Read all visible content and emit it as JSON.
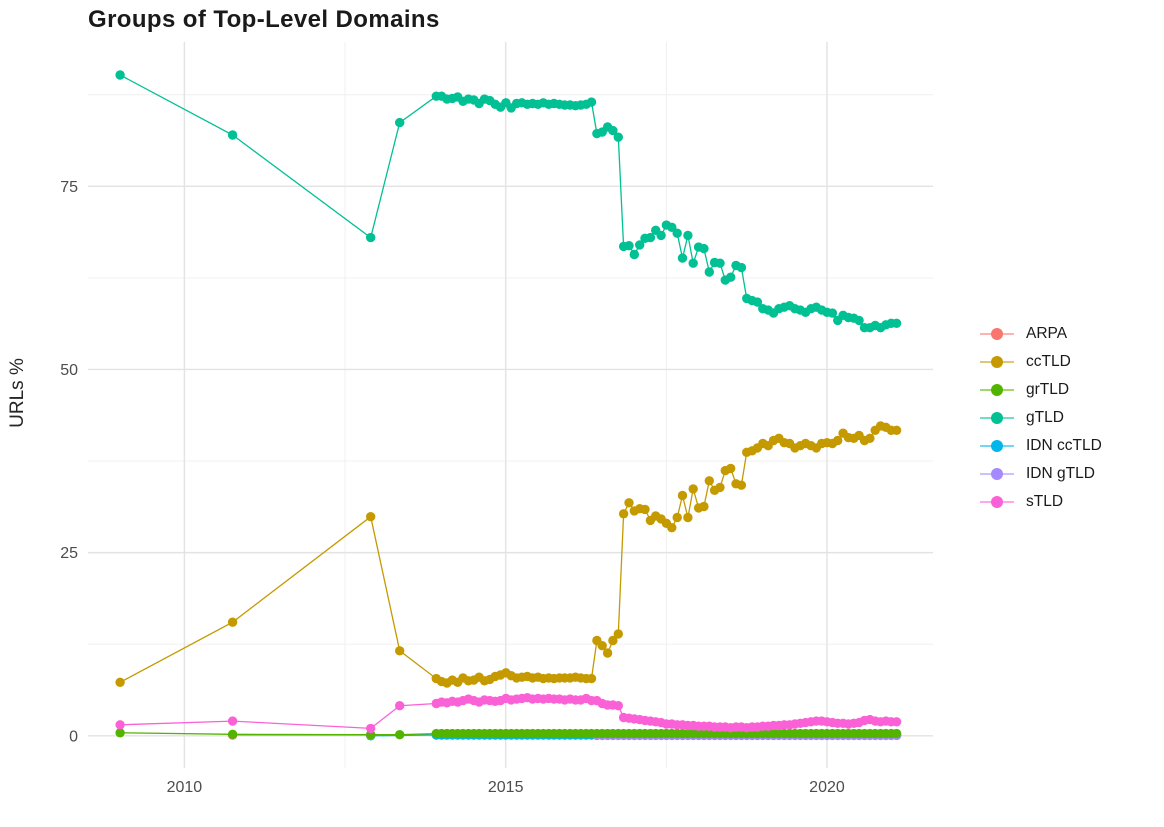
{
  "page": {
    "title": "Groups of Top-Level Domains"
  },
  "chart_data": {
    "type": "line",
    "title": "Groups of Top-Level Domains",
    "xlabel": "",
    "ylabel": "URLs %",
    "x_ticks": [
      2010,
      2015,
      2020
    ],
    "x_minor_gridlines": [
      2012.5,
      2017.5
    ],
    "y_ticks": [
      0,
      25,
      50,
      75
    ],
    "y_minor_gridlines": [
      12.5,
      37.5,
      62.5,
      87.5
    ],
    "xlim": [
      2008.5,
      2021.65
    ],
    "ylim": [
      -4.4,
      94.7
    ],
    "grid": true,
    "legend_position": "right",
    "legend": [
      "ARPA",
      "ccTLD",
      "grTLD",
      "gTLD",
      "IDN ccTLD",
      "IDN gTLD",
      "sTLD"
    ],
    "draw_order": [
      "IDN ccTLD",
      "IDN gTLD",
      "ARPA",
      "grTLD",
      "ccTLD",
      "gTLD",
      "sTLD"
    ],
    "series": [
      {
        "name": "ARPA",
        "color": "#F8766D",
        "early": [
          [
            2010.75,
            0.1
          ],
          [
            2012.9,
            0.1
          ]
        ],
        "monthly_start": null,
        "monthly_step": null,
        "monthly": []
      },
      {
        "name": "ccTLD",
        "color": "#C49A00",
        "early": [
          [
            2009.0,
            7.3
          ],
          [
            2010.75,
            15.5
          ],
          [
            2012.9,
            29.9
          ],
          [
            2013.35,
            11.6
          ]
        ],
        "monthly_start": 2013.92,
        "monthly_step": 0.0833,
        "monthly": [
          7.8,
          7.4,
          7.2,
          7.6,
          7.3,
          7.9,
          7.5,
          7.6,
          8.0,
          7.5,
          7.7,
          8.1,
          8.3,
          8.6,
          8.2,
          7.9,
          8.0,
          8.1,
          7.9,
          8.0,
          7.8,
          7.9,
          7.8,
          7.9,
          7.9,
          7.9,
          8.0,
          7.9,
          7.8,
          7.8,
          13.0,
          12.3,
          11.3,
          13.0,
          13.9,
          30.3,
          31.8,
          30.7,
          31.0,
          30.9,
          29.4,
          30.0,
          29.6,
          29.0,
          28.4,
          29.8,
          32.8,
          29.8,
          33.7,
          31.1,
          31.3,
          34.8,
          33.5,
          33.9,
          36.2,
          36.5,
          34.4,
          34.2,
          38.7,
          38.9,
          39.3,
          39.9,
          39.6,
          40.3,
          40.6,
          40.0,
          39.9,
          39.3,
          39.6,
          39.9,
          39.6,
          39.3,
          39.9,
          40.0,
          39.9,
          40.3,
          41.3,
          40.7,
          40.6,
          41.0,
          40.3,
          40.6,
          41.7,
          42.3,
          42.1,
          41.7,
          41.7
        ]
      },
      {
        "name": "grTLD",
        "color": "#53B400",
        "early": [
          [
            2009.0,
            0.4
          ],
          [
            2010.75,
            0.2
          ],
          [
            2012.9,
            0.15
          ],
          [
            2013.35,
            0.15
          ]
        ],
        "monthly_start": 2013.92,
        "monthly_step": 0.0833,
        "monthly": [
          0.3,
          0.3,
          0.3,
          0.3,
          0.3,
          0.3,
          0.3,
          0.3,
          0.3,
          0.3,
          0.3,
          0.3,
          0.3,
          0.3,
          0.3,
          0.3,
          0.3,
          0.3,
          0.3,
          0.3,
          0.3,
          0.3,
          0.3,
          0.3,
          0.3,
          0.3,
          0.3,
          0.3,
          0.3,
          0.3,
          0.3,
          0.3,
          0.3,
          0.3,
          0.3,
          0.3,
          0.3,
          0.3,
          0.3,
          0.3,
          0.3,
          0.3,
          0.3,
          0.3,
          0.3,
          0.3,
          0.3,
          0.3,
          0.3,
          0.3,
          0.3,
          0.3,
          0.3,
          0.3,
          0.3,
          0.3,
          0.3,
          0.3,
          0.3,
          0.3,
          0.3,
          0.3,
          0.3,
          0.3,
          0.3,
          0.3,
          0.3,
          0.3,
          0.3,
          0.3,
          0.3,
          0.3,
          0.3,
          0.3,
          0.3,
          0.3,
          0.3,
          0.3,
          0.3,
          0.3,
          0.3,
          0.3,
          0.3,
          0.3,
          0.3,
          0.3,
          0.3
        ]
      },
      {
        "name": "gTLD",
        "color": "#00C094",
        "early": [
          [
            2009.0,
            90.2
          ],
          [
            2010.75,
            82.0
          ],
          [
            2012.9,
            68.0
          ],
          [
            2013.35,
            83.7
          ]
        ],
        "monthly_start": 2013.92,
        "monthly_step": 0.0833,
        "monthly": [
          87.3,
          87.3,
          86.9,
          87.0,
          87.2,
          86.6,
          86.9,
          86.8,
          86.3,
          86.9,
          86.7,
          86.2,
          85.8,
          86.4,
          85.7,
          86.3,
          86.4,
          86.2,
          86.3,
          86.2,
          86.4,
          86.2,
          86.3,
          86.2,
          86.1,
          86.1,
          86.0,
          86.1,
          86.2,
          86.5,
          82.2,
          82.4,
          83.1,
          82.6,
          81.7,
          66.8,
          66.9,
          65.7,
          67.0,
          67.9,
          68.0,
          69.0,
          68.3,
          69.7,
          69.4,
          68.6,
          65.2,
          68.3,
          64.5,
          66.7,
          66.5,
          63.3,
          64.6,
          64.5,
          62.2,
          62.6,
          64.2,
          63.9,
          59.7,
          59.4,
          59.2,
          58.3,
          58.1,
          57.7,
          58.3,
          58.5,
          58.7,
          58.3,
          58.1,
          57.8,
          58.3,
          58.5,
          58.1,
          57.8,
          57.7,
          56.7,
          57.4,
          57.1,
          57.0,
          56.7,
          55.7,
          55.7,
          56.0,
          55.7,
          56.1,
          56.3,
          56.3
        ]
      },
      {
        "name": "IDN ccTLD",
        "color": "#00B6EB",
        "early": [
          [
            2012.9,
            0.0
          ]
        ],
        "monthly_start": 2013.92,
        "monthly_step": 0.0833,
        "monthly": [
          0.1,
          0.1,
          0.1,
          0.1,
          0.1,
          0.1,
          0.1,
          0.1,
          0.1,
          0.1,
          0.1,
          0.1,
          0.1,
          0.1,
          0.1,
          0.1,
          0.1,
          0.1,
          0.1,
          0.1,
          0.1,
          0.1,
          0.1,
          0.1,
          0.1,
          0.1,
          0.1,
          0.1,
          0.1,
          0.1,
          0.1,
          0.1,
          0.1,
          0.1,
          0.1,
          0.1,
          0.1,
          0.1,
          0.1,
          0.1,
          0.1,
          0.1,
          0.1,
          0.1,
          0.1,
          0.1,
          0.1,
          0.1,
          0.1,
          0.1,
          0.1,
          0.1,
          0.1,
          0.1,
          0.1,
          0.1,
          0.1,
          0.1,
          0.1,
          0.1,
          0.1,
          0.1,
          0.1,
          0.1,
          0.1,
          0.1,
          0.1,
          0.1,
          0.1,
          0.1,
          0.1,
          0.1,
          0.1,
          0.1,
          0.1,
          0.1,
          0.1,
          0.1,
          0.1,
          0.1,
          0.1,
          0.1,
          0.1,
          0.1,
          0.1,
          0.1,
          0.1
        ]
      },
      {
        "name": "IDN gTLD",
        "color": "#A58AFF",
        "early": [],
        "monthly_start": 2016.42,
        "monthly_step": 0.0833,
        "monthly": [
          0.05,
          0.05,
          0.05,
          0.05,
          0.05,
          0.05,
          0.05,
          0.05,
          0.05,
          0.05,
          0.05,
          0.05,
          0.05,
          0.05,
          0.05,
          0.05,
          0.05,
          0.05,
          0.05,
          0.05,
          0.05,
          0.05,
          0.05,
          0.05,
          0.05,
          0.05,
          0.05,
          0.05,
          0.05,
          0.05,
          0.05,
          0.05,
          0.05,
          0.05,
          0.05,
          0.05,
          0.05,
          0.05,
          0.05,
          0.05,
          0.05,
          0.05,
          0.05,
          0.05,
          0.05,
          0.05,
          0.05,
          0.05,
          0.05,
          0.05,
          0.05,
          0.05,
          0.05,
          0.05,
          0.05,
          0.05,
          0.05
        ]
      },
      {
        "name": "sTLD",
        "color": "#FB61D7",
        "early": [
          [
            2009.0,
            1.5
          ],
          [
            2010.75,
            2.0
          ],
          [
            2012.9,
            1.0
          ],
          [
            2013.35,
            4.1
          ]
        ],
        "monthly_start": 2013.92,
        "monthly_step": 0.0833,
        "monthly": [
          4.4,
          4.6,
          4.5,
          4.7,
          4.6,
          4.8,
          5.0,
          4.8,
          4.6,
          4.9,
          4.8,
          4.7,
          4.8,
          5.1,
          4.9,
          5.0,
          5.1,
          5.2,
          5.0,
          5.1,
          5.0,
          5.1,
          5.0,
          5.0,
          4.9,
          5.0,
          4.9,
          4.9,
          5.1,
          4.8,
          4.8,
          4.4,
          4.2,
          4.2,
          4.1,
          2.5,
          2.4,
          2.3,
          2.2,
          2.1,
          2.0,
          1.9,
          1.8,
          1.6,
          1.6,
          1.5,
          1.5,
          1.4,
          1.4,
          1.3,
          1.3,
          1.3,
          1.2,
          1.2,
          1.2,
          1.1,
          1.2,
          1.2,
          1.1,
          1.2,
          1.2,
          1.3,
          1.3,
          1.4,
          1.4,
          1.5,
          1.5,
          1.6,
          1.7,
          1.8,
          1.9,
          2.0,
          2.0,
          1.9,
          1.8,
          1.7,
          1.7,
          1.6,
          1.7,
          1.8,
          2.1,
          2.2,
          2.0,
          1.9,
          2.0,
          1.9,
          1.9
        ]
      }
    ],
    "style": {
      "grid_major_color": "#e3e3e3",
      "grid_minor_color": "#efefef",
      "tick_label_color": "#4d4d4d",
      "point_radius": 4.7,
      "line_width": 1.3
    }
  }
}
